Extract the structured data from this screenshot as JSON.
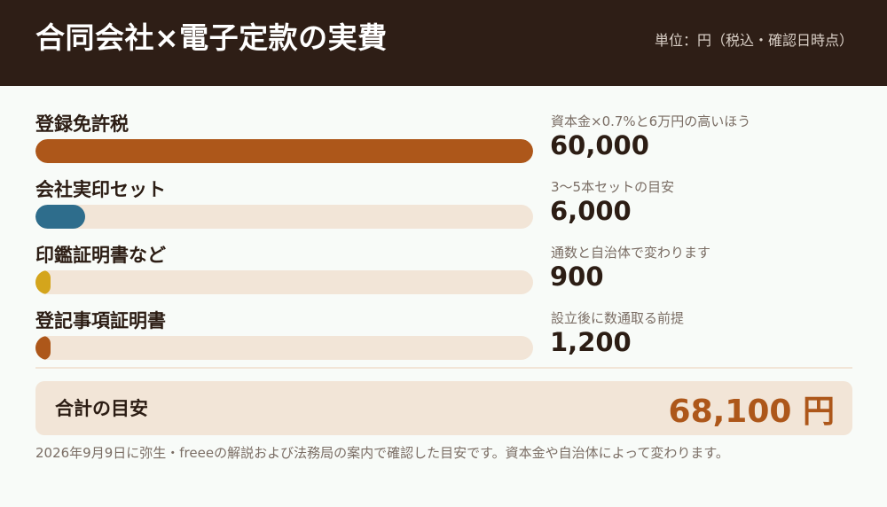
{
  "header": {
    "title": "合同会社×電子定款の実費",
    "unit": "単位：円（税込・確認日時点）"
  },
  "chart_data": {
    "type": "bar",
    "orientation": "horizontal",
    "categories": [
      "登録免許税",
      "会社実印セット",
      "印鑑証明書など",
      "登記事項証明書"
    ],
    "values": [
      60000,
      6000,
      900,
      1200
    ],
    "value_labels": [
      "60,000",
      "6,000",
      "900",
      "1,200"
    ],
    "notes": [
      "資本金×0.7%と6万円の高いほう",
      "3〜5本セットの目安",
      "通数と自治体で変わります",
      "設立後に数通取る前提"
    ],
    "colors": [
      "#ad571a",
      "#2e6d8c",
      "#d4a51c",
      "#ad571a"
    ],
    "track_color": "#f2e5d7",
    "xlim": [
      0,
      60000
    ]
  },
  "total": {
    "label": "合計の目安",
    "value": "68,100 円"
  },
  "footnote": "2026年9月9日に弥生・freeeの解説および法務局の案内で確認した目安です。資本金や自治体によって変わります。"
}
